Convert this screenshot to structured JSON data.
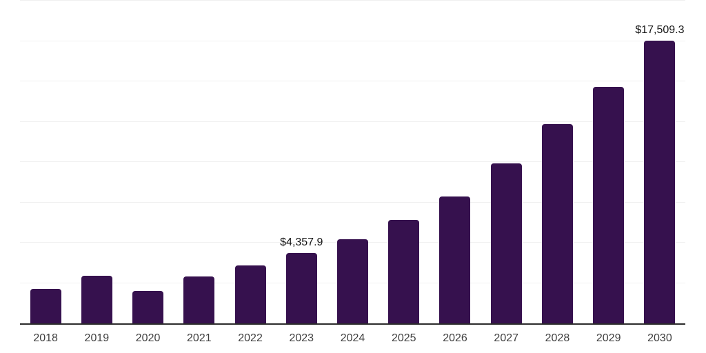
{
  "chart_data": {
    "type": "bar",
    "title": "",
    "xlabel": "",
    "ylabel": "",
    "categories": [
      "2018",
      "2019",
      "2020",
      "2021",
      "2022",
      "2023",
      "2024",
      "2025",
      "2026",
      "2027",
      "2028",
      "2029",
      "2030"
    ],
    "values": [
      2150,
      2960,
      2010,
      2890,
      3590,
      4357.9,
      5210,
      6400,
      7880,
      9900,
      12340,
      14650,
      17509.3
    ],
    "data_labels": [
      "",
      "",
      "",
      "",
      "",
      "$4,357.9",
      "",
      "",
      "",
      "",
      "",
      "",
      "$17,509.3"
    ],
    "ylim": [
      0,
      20000
    ],
    "grid_interval": 2500,
    "grid": true,
    "legend": false,
    "y_tick_labels_visible": false
  },
  "colors": {
    "bar": "#36114E",
    "gridline": "#f0f0f0",
    "axis": "#2b2b2b",
    "tick_label": "#3f3f3f",
    "data_label": "#141414",
    "background": "#ffffff"
  }
}
